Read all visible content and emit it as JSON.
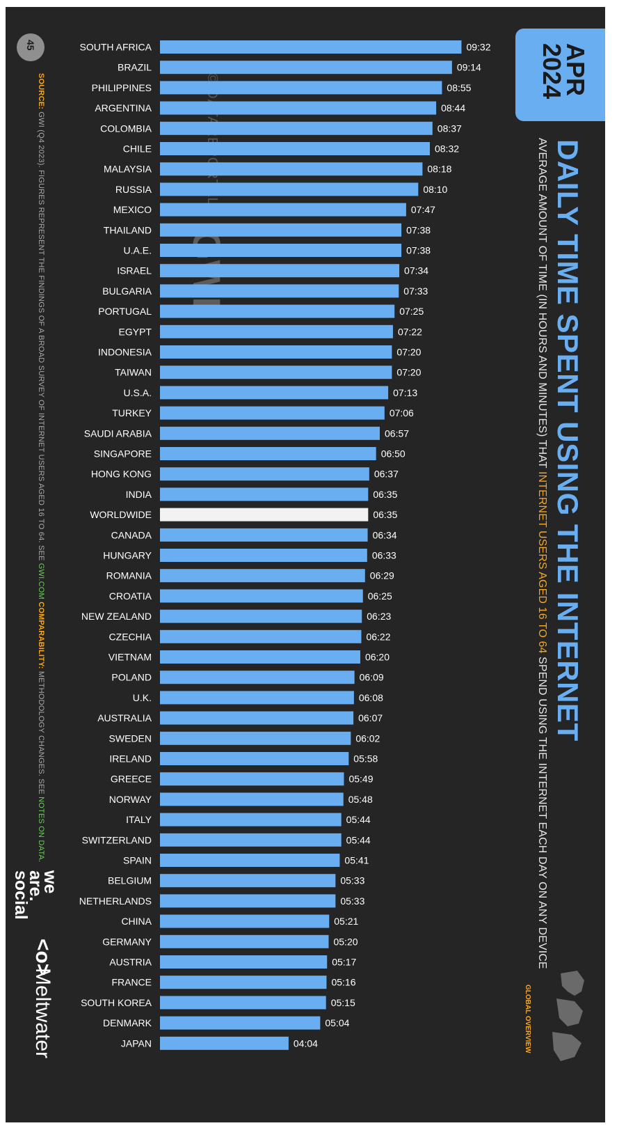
{
  "page_number": "45",
  "date": "APR\n2024",
  "title": "DAILY TIME SPENT USING THE INTERNET",
  "subtitle": {
    "before": "AVERAGE AMOUNT OF TIME (IN HOURS AND MINUTES) THAT ",
    "highlight": "INTERNET USERS AGED 16 TO 64",
    "after": " SPEND USING THE INTERNET EACH DAY ON ANY DEVICE"
  },
  "source": {
    "label": "SOURCE:",
    "text1": " GWI (Q4 2023). FIGURES REPRESENT THE FINDINGS OF A BROAD SURVEY OF INTERNET USERS AGED 16 TO 64. SEE ",
    "link1": "GWI.COM",
    "text2": " ",
    "comparability_label": "COMPARABILITY:",
    "text3": " METHODOLOGY CHANGES. SEE ",
    "link2": "NOTES ON DATA",
    "text4": "."
  },
  "branding": {
    "we_are_social": "we\nare.\nsocial",
    "meltwater_icon": "<o>",
    "meltwater": "Meltwater"
  },
  "section_label": "GLOBAL OVERVIEW",
  "watermarks": {
    "datareportal": "© DATAREPORTAL",
    "gwi": "GWI."
  },
  "colors": {
    "background": "#252525",
    "bar": "#6aaef2",
    "highlight_bar": "#f2f2f2",
    "accent": "#f5a623",
    "link": "#6bcb5a"
  },
  "chart_data": {
    "type": "bar",
    "orientation": "horizontal",
    "categories": [
      "SOUTH AFRICA",
      "BRAZIL",
      "PHILIPPINES",
      "ARGENTINA",
      "COLOMBIA",
      "CHILE",
      "MALAYSIA",
      "RUSSIA",
      "MEXICO",
      "THAILAND",
      "U.A.E.",
      "ISRAEL",
      "BULGARIA",
      "PORTUGAL",
      "EGYPT",
      "INDONESIA",
      "TAIWAN",
      "U.S.A.",
      "TURKEY",
      "SAUDI ARABIA",
      "SINGAPORE",
      "HONG KONG",
      "INDIA",
      "WORLDWIDE",
      "CANADA",
      "HUNGARY",
      "ROMANIA",
      "CROATIA",
      "NEW ZEALAND",
      "CZECHIA",
      "VIETNAM",
      "POLAND",
      "U.K.",
      "AUSTRALIA",
      "SWEDEN",
      "IRELAND",
      "GREECE",
      "NORWAY",
      "ITALY",
      "SWITZERLAND",
      "SPAIN",
      "BELGIUM",
      "NETHERLANDS",
      "CHINA",
      "GERMANY",
      "AUSTRIA",
      "FRANCE",
      "SOUTH KOREA",
      "DENMARK",
      "JAPAN"
    ],
    "labels": [
      "09:32",
      "09:14",
      "08:55",
      "08:44",
      "08:37",
      "08:32",
      "08:18",
      "08:10",
      "07:47",
      "07:38",
      "07:38",
      "07:34",
      "07:33",
      "07:25",
      "07:22",
      "07:20",
      "07:20",
      "07:13",
      "07:06",
      "06:57",
      "06:50",
      "06:37",
      "06:35",
      "06:35",
      "06:34",
      "06:33",
      "06:29",
      "06:25",
      "06:23",
      "06:22",
      "06:20",
      "06:09",
      "06:08",
      "06:07",
      "06:02",
      "05:58",
      "05:49",
      "05:48",
      "05:44",
      "05:44",
      "05:41",
      "05:33",
      "05:33",
      "05:21",
      "05:20",
      "05:17",
      "05:16",
      "05:15",
      "05:04",
      "04:04"
    ],
    "highlight_category": "WORLDWIDE"
  }
}
